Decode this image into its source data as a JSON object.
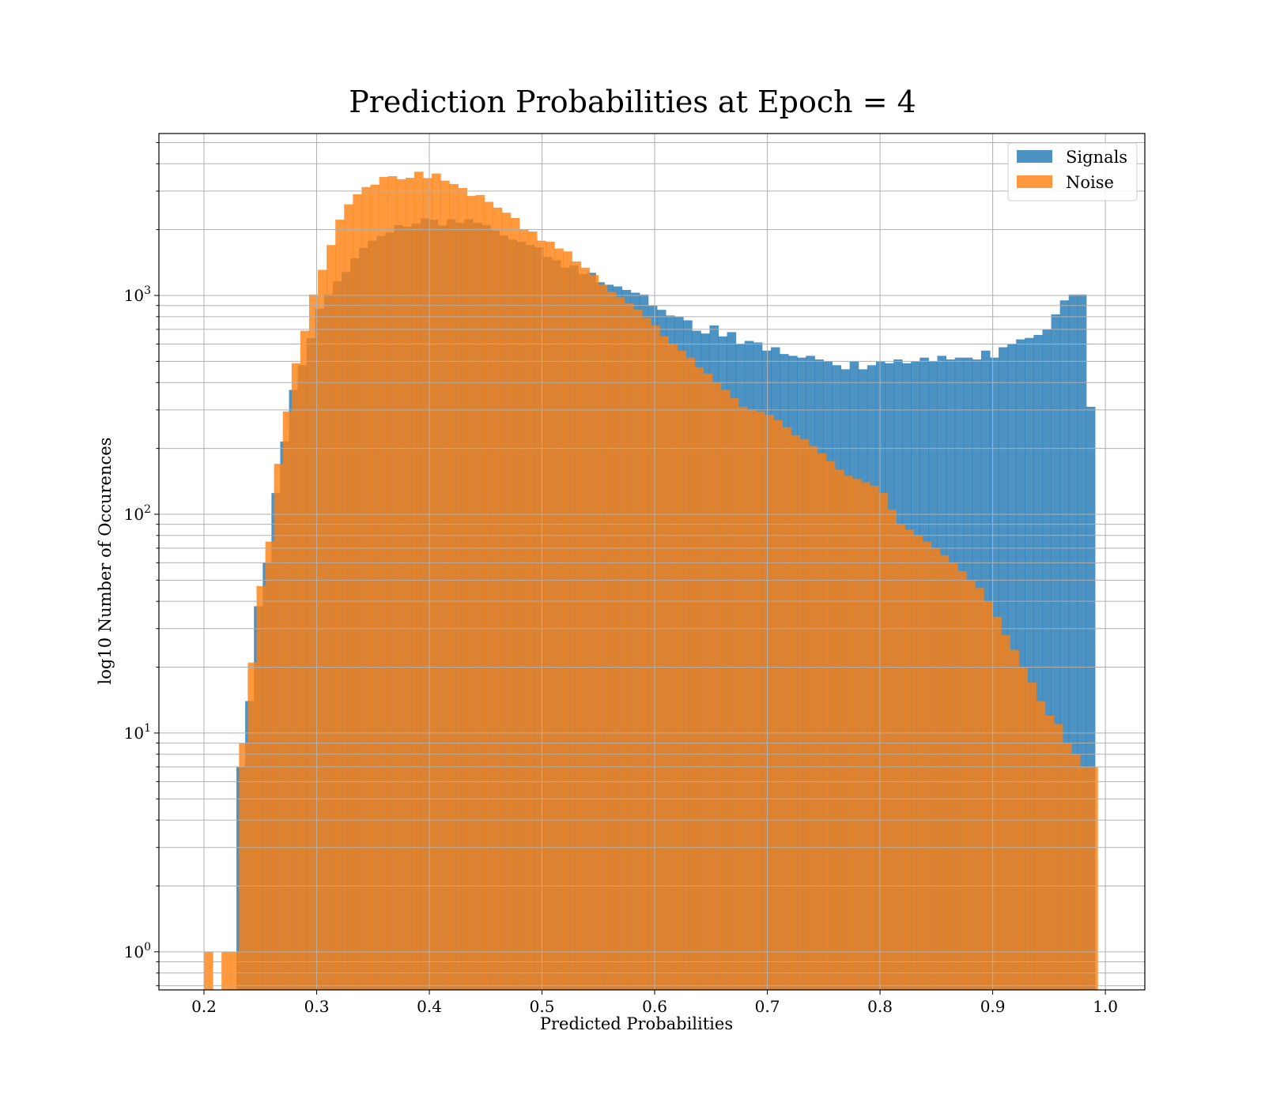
{
  "chart_data": {
    "type": "histogram",
    "title": "Prediction Probabilities at Epoch = 4",
    "xlabel": "Predicted Probabilities",
    "ylabel": "log10 Number of Occurences",
    "xlim": [
      0.16,
      1.035
    ],
    "ylim": [
      0.67,
      5500
    ],
    "yscale": "log",
    "grid": true,
    "legend_position": "top-right",
    "x_ticks": [
      "0.2",
      "0.3",
      "0.4",
      "0.5",
      "0.6",
      "0.7",
      "0.8",
      "0.9",
      "1.0"
    ],
    "y_ticks": [
      {
        "base": "10",
        "exp": "0",
        "value": 1
      },
      {
        "base": "10",
        "exp": "1",
        "value": 10
      },
      {
        "base": "10",
        "exp": "2",
        "value": 100
      },
      {
        "base": "10",
        "exp": "3",
        "value": 1000
      }
    ],
    "series": [
      {
        "name": "Signals",
        "color": "#1f77b4",
        "bin_start": 0.2288,
        "bin_width": 0.007775,
        "counts": [
          7,
          14,
          38,
          60,
          125,
          215,
          370,
          480,
          640,
          870,
          1010,
          1160,
          1280,
          1480,
          1650,
          1780,
          1870,
          1940,
          2100,
          2060,
          2130,
          2250,
          2220,
          2090,
          2230,
          2150,
          2230,
          2150,
          2100,
          1980,
          1880,
          1800,
          1760,
          1700,
          1660,
          1500,
          1450,
          1340,
          1370,
          1250,
          1270,
          1150,
          1120,
          1100,
          1060,
          1030,
          1010,
          900,
          860,
          810,
          800,
          770,
          690,
          670,
          730,
          650,
          680,
          600,
          620,
          610,
          560,
          580,
          540,
          530,
          520,
          530,
          510,
          500,
          480,
          460,
          500,
          460,
          480,
          500,
          490,
          510,
          490,
          500,
          520,
          500,
          530,
          510,
          520,
          520,
          510,
          560,
          520,
          580,
          600,
          630,
          640,
          660,
          700,
          820,
          950,
          1010,
          1010,
          310
        ]
      },
      {
        "name": "Noise",
        "color": "#ff7f0e",
        "bin_start": 0.2,
        "bin_width": 0.007775,
        "counts": [
          1,
          0,
          1,
          1,
          9,
          21,
          47,
          75,
          170,
          295,
          490,
          690,
          1010,
          1310,
          1700,
          2220,
          2610,
          2900,
          3130,
          3210,
          3480,
          3510,
          3400,
          3450,
          3680,
          3440,
          3610,
          3350,
          3230,
          3100,
          2850,
          2880,
          2680,
          2520,
          2390,
          2260,
          2010,
          1960,
          1780,
          1760,
          1640,
          1590,
          1430,
          1340,
          1240,
          1120,
          1040,
          980,
          920,
          860,
          790,
          730,
          650,
          600,
          560,
          520,
          470,
          440,
          400,
          370,
          340,
          310,
          300,
          295,
          285,
          270,
          250,
          230,
          220,
          205,
          190,
          175,
          160,
          150,
          145,
          140,
          135,
          125,
          105,
          90,
          85,
          80,
          75,
          70,
          65,
          60,
          55,
          50,
          46,
          40,
          34,
          28,
          24,
          20,
          17,
          14,
          12,
          11,
          9,
          8,
          7,
          7
        ]
      }
    ]
  }
}
